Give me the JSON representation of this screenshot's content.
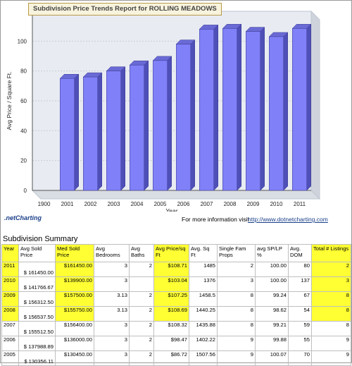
{
  "chart_data": {
    "type": "bar",
    "title": "Subdivision Price Trends Report for ROLLING MEADOWS",
    "xlabel": "Year",
    "ylabel": "Avg Price / Square Ft.",
    "ylim": [
      0,
      120
    ],
    "yticks": [
      0,
      20,
      40,
      60,
      80,
      100
    ],
    "categories": [
      "1900",
      "2001",
      "2002",
      "2003",
      "2004",
      "2005",
      "2006",
      "2007",
      "2008",
      "2009",
      "2010",
      "2011"
    ],
    "values": [
      0,
      75,
      76,
      80,
      84,
      87,
      98,
      108,
      108.5,
      106.5,
      103,
      108.5
    ],
    "grid": true,
    "bar_color": "#8080f8"
  },
  "branding": {
    "logo_text": ".netCharting",
    "info_text": "For more information visit",
    "link_text": "http://www.dotnetcharting.com"
  },
  "summary": {
    "title": "Subdivision Summary",
    "headers": [
      "Year",
      "Avg Sold Price",
      "Med Sold Price",
      "Avg Bedrooms",
      "Avg Baths",
      "Avg Price/sq Ft",
      "Avg. Sq Ft",
      "Single Fam Props",
      "avg SP/LP %",
      "Avg. DOM",
      "Total # Listings"
    ],
    "rows": [
      [
        "2011",
        "$ 161450.00",
        "$161450.00",
        "3",
        "2",
        "$108.71",
        "1485",
        "2",
        "100.00",
        "80",
        "2"
      ],
      [
        "2010",
        "$ 141766.67",
        "$139900.00",
        "3",
        "",
        "$103.04",
        "1376",
        "3",
        "100.00",
        "137",
        "3"
      ],
      [
        "2009",
        "$ 156312.50",
        "$157500.00",
        "3.13",
        "2",
        "$107.25",
        "1458.5",
        "8",
        "99.24",
        "67",
        "8"
      ],
      [
        "2008",
        "$ 156537.50",
        "$155750.00",
        "3.13",
        "2",
        "$108.69",
        "1440.25",
        "8",
        "98.62",
        "54",
        "8"
      ],
      [
        "2007",
        "$ 155512.50",
        "$156400.00",
        "3",
        "2",
        "$108.32",
        "1435.88",
        "8",
        "99.21",
        "59",
        "8"
      ],
      [
        "2006",
        "$ 137988.89",
        "$136000.00",
        "3",
        "2",
        "$98.47",
        "1402.22",
        "9",
        "99.88",
        "55",
        "9"
      ],
      [
        "2005",
        "$ 130356.11",
        "$130450.00",
        "3",
        "2",
        "$86.72",
        "1507.56",
        "9",
        "100.07",
        "70",
        "9"
      ]
    ]
  }
}
